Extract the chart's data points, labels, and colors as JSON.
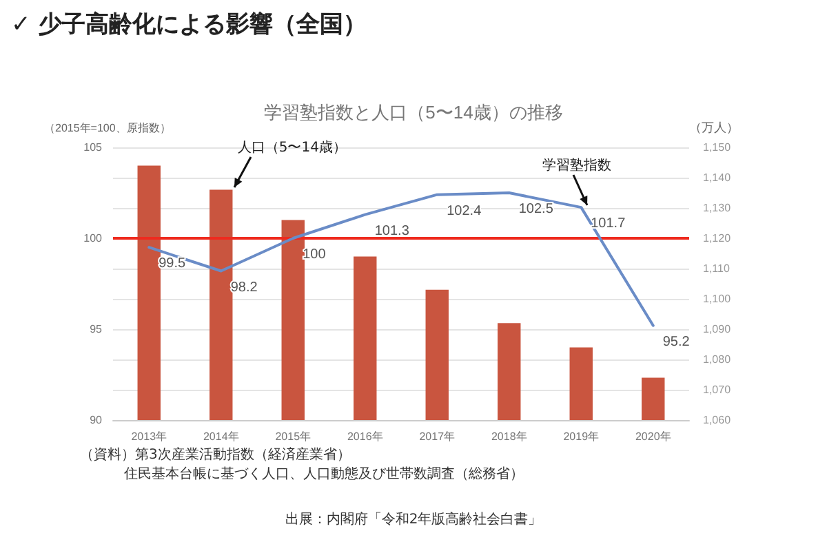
{
  "chart_data": {
    "type": "bar",
    "title": "✓ 少子高齢化による影響（全国）",
    "subtitle": "学習塾指数と人口（5〜14歳）の推移",
    "ylabel": "（2015年=100、原指数）",
    "y2label": "（万人）",
    "categories": [
      "2013年",
      "2014年",
      "2015年",
      "2016年",
      "2017年",
      "2018年",
      "2019年",
      "2020年"
    ],
    "series": [
      {
        "name": "人口（5〜14歳）",
        "axis": "y2",
        "color": "#c9553f",
        "values": [
          1144,
          1136,
          1126,
          1114,
          1103,
          1092,
          1084,
          1074
        ]
      },
      {
        "name": "学習塾指数",
        "type": "line",
        "color": "#6a8cc7",
        "values": [
          99.5,
          98.2,
          100,
          101.3,
          102.4,
          102.5,
          101.7,
          95.2
        ],
        "value_labels": [
          "99.5",
          "98.2",
          "100",
          "101.3",
          "102.4",
          "102.5",
          "101.7",
          "95.2"
        ]
      }
    ],
    "ylim": [
      90,
      105
    ],
    "yticks": [
      90,
      95,
      100,
      105
    ],
    "y2lim": [
      1060,
      1150
    ],
    "y2ticks": [
      {
        "value": 1060,
        "label": "1,060"
      },
      {
        "value": 1070,
        "label": "1,070"
      },
      {
        "value": 1080,
        "label": "1,080"
      },
      {
        "value": 1090,
        "label": "1,090"
      },
      {
        "value": 1100,
        "label": "1,100"
      },
      {
        "value": 1110,
        "label": "1,110"
      },
      {
        "value": 1120,
        "label": "1,120"
      },
      {
        "value": 1130,
        "label": "1,130"
      },
      {
        "value": 1140,
        "label": "1,140"
      },
      {
        "value": 1150,
        "label": "1,150"
      }
    ],
    "ref_lines": [
      {
        "axis": "y",
        "value": 100,
        "color": "#ee2a1e"
      }
    ],
    "grid": "y",
    "marker": "none",
    "line_style": "solid",
    "legend": false,
    "annotations": [
      "（資料）第3次産業活動指数（経済産業省）",
      "住民基本台帳に基づく人口、人口動態及び世帯数調査（総務省）",
      "出展：内閣府「令和2年版高齢社会白書」"
    ]
  }
}
